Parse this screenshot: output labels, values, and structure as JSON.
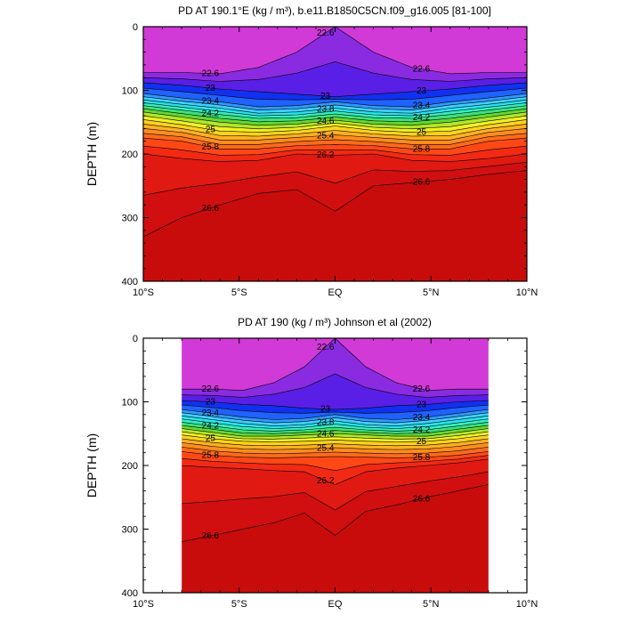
{
  "chart_data": [
    {
      "type": "contour",
      "title": "PD AT 190.1°E (kg / m³), b.e11.B1850C5CN.f09_g16.005 [81-100]",
      "ylabel": "DEPTH (m)",
      "xlabel": "",
      "x_tick_labels": [
        "10°S",
        "5°S",
        "EQ",
        "5°N",
        "10°N"
      ],
      "x_tick_values": [
        -10,
        -5,
        0,
        5,
        10
      ],
      "y_tick_labels": [
        "0",
        "100",
        "200",
        "300",
        "400"
      ],
      "y_tick_values": [
        0,
        100,
        200,
        300,
        400
      ],
      "xlim": [
        -10,
        10
      ],
      "ylim": [
        400,
        0
      ],
      "y_inverted": true,
      "contour_interval": 0.2,
      "labelled_levels": [
        "22.6",
        "23",
        "23.4",
        "23.8",
        "24.2",
        "24.6",
        "25",
        "25.4",
        "25.8",
        "26.2",
        "26.6"
      ],
      "data_extent": [
        -10,
        10
      ],
      "levels_depths": [
        {
          "level": 22.6,
          "depth": [
            72,
            72,
            74,
            64,
            40,
            0,
            40,
            64,
            74,
            72,
            72
          ]
        },
        {
          "level": 23.0,
          "depth": [
            88,
            92,
            98,
            102,
            106,
            110,
            106,
            102,
            98,
            92,
            88
          ]
        },
        {
          "level": 23.4,
          "depth": [
            105,
            112,
            118,
            126,
            124,
            118,
            124,
            126,
            118,
            112,
            105
          ]
        },
        {
          "level": 23.8,
          "depth": [
            115,
            122,
            128,
            136,
            134,
            128,
            134,
            136,
            128,
            122,
            115
          ]
        },
        {
          "level": 24.2,
          "depth": [
            124,
            131,
            138,
            144,
            143,
            137,
            143,
            144,
            138,
            131,
            124
          ]
        },
        {
          "level": 24.6,
          "depth": [
            134,
            142,
            150,
            155,
            153,
            147,
            153,
            155,
            150,
            142,
            134
          ]
        },
        {
          "level": 25.0,
          "depth": [
            146,
            154,
            164,
            166,
            163,
            156,
            163,
            166,
            164,
            154,
            146
          ]
        },
        {
          "level": 25.4,
          "depth": [
            160,
            166,
            178,
            178,
            174,
            170,
            174,
            178,
            178,
            166,
            160
          ]
        },
        {
          "level": 25.8,
          "depth": [
            175,
            180,
            192,
            192,
            187,
            185,
            187,
            192,
            192,
            180,
            175
          ]
        },
        {
          "level": 26.2,
          "depth": [
            200,
            207,
            212,
            210,
            200,
            202,
            200,
            210,
            212,
            207,
            200
          ]
        },
        {
          "level": 26.6,
          "depth": [
            330,
            300,
            280,
            262,
            256,
            290,
            250,
            245,
            240,
            232,
            226
          ]
        }
      ]
    },
    {
      "type": "contour",
      "title": "PD AT 190 (kg / m³) Johnson et al (2002)",
      "ylabel": "DEPTH (m)",
      "xlabel": "",
      "x_tick_labels": [
        "10°S",
        "5°S",
        "EQ",
        "5°N",
        "10°N"
      ],
      "x_tick_values": [
        -10,
        -5,
        0,
        5,
        10
      ],
      "y_tick_labels": [
        "0",
        "100",
        "200",
        "300",
        "400"
      ],
      "y_tick_values": [
        0,
        100,
        200,
        300,
        400
      ],
      "xlim": [
        -10,
        10
      ],
      "ylim": [
        400,
        0
      ],
      "y_inverted": true,
      "contour_interval": 0.2,
      "labelled_levels": [
        "22.6",
        "23",
        "23.4",
        "23.8",
        "24.2",
        "24.6",
        "25",
        "25.4",
        "25.8",
        "26.2",
        "26.6"
      ],
      "data_extent": [
        -8,
        8
      ],
      "levels_depths": [
        {
          "level": 22.6,
          "depth": [
            80,
            80,
            82,
            70,
            45,
            0,
            45,
            70,
            82,
            80,
            80
          ]
        },
        {
          "level": 23.0,
          "depth": [
            98,
            100,
            104,
            106,
            110,
            112,
            110,
            106,
            104,
            100,
            98
          ]
        },
        {
          "level": 23.4,
          "depth": [
            112,
            118,
            124,
            128,
            126,
            120,
            126,
            128,
            124,
            118,
            112
          ]
        },
        {
          "level": 23.8,
          "depth": [
            122,
            128,
            134,
            138,
            136,
            130,
            136,
            138,
            134,
            128,
            122
          ]
        },
        {
          "level": 24.2,
          "depth": [
            132,
            138,
            144,
            146,
            144,
            140,
            144,
            146,
            144,
            138,
            132
          ]
        },
        {
          "level": 24.6,
          "depth": [
            142,
            148,
            154,
            154,
            152,
            150,
            152,
            154,
            154,
            148,
            142
          ]
        },
        {
          "level": 25.0,
          "depth": [
            152,
            158,
            162,
            163,
            162,
            160,
            162,
            163,
            162,
            158,
            152
          ]
        },
        {
          "level": 25.4,
          "depth": [
            164,
            170,
            174,
            175,
            174,
            172,
            174,
            175,
            174,
            170,
            164
          ]
        },
        {
          "level": 25.8,
          "depth": [
            178,
            184,
            187,
            188,
            187,
            186,
            187,
            188,
            187,
            184,
            178
          ]
        },
        {
          "level": 26.2,
          "depth": [
            200,
            203,
            205,
            208,
            210,
            230,
            210,
            204,
            200,
            196,
            190
          ]
        },
        {
          "level": 26.6,
          "depth": [
            320,
            310,
            300,
            290,
            275,
            310,
            272,
            262,
            250,
            240,
            230
          ]
        }
      ]
    }
  ]
}
